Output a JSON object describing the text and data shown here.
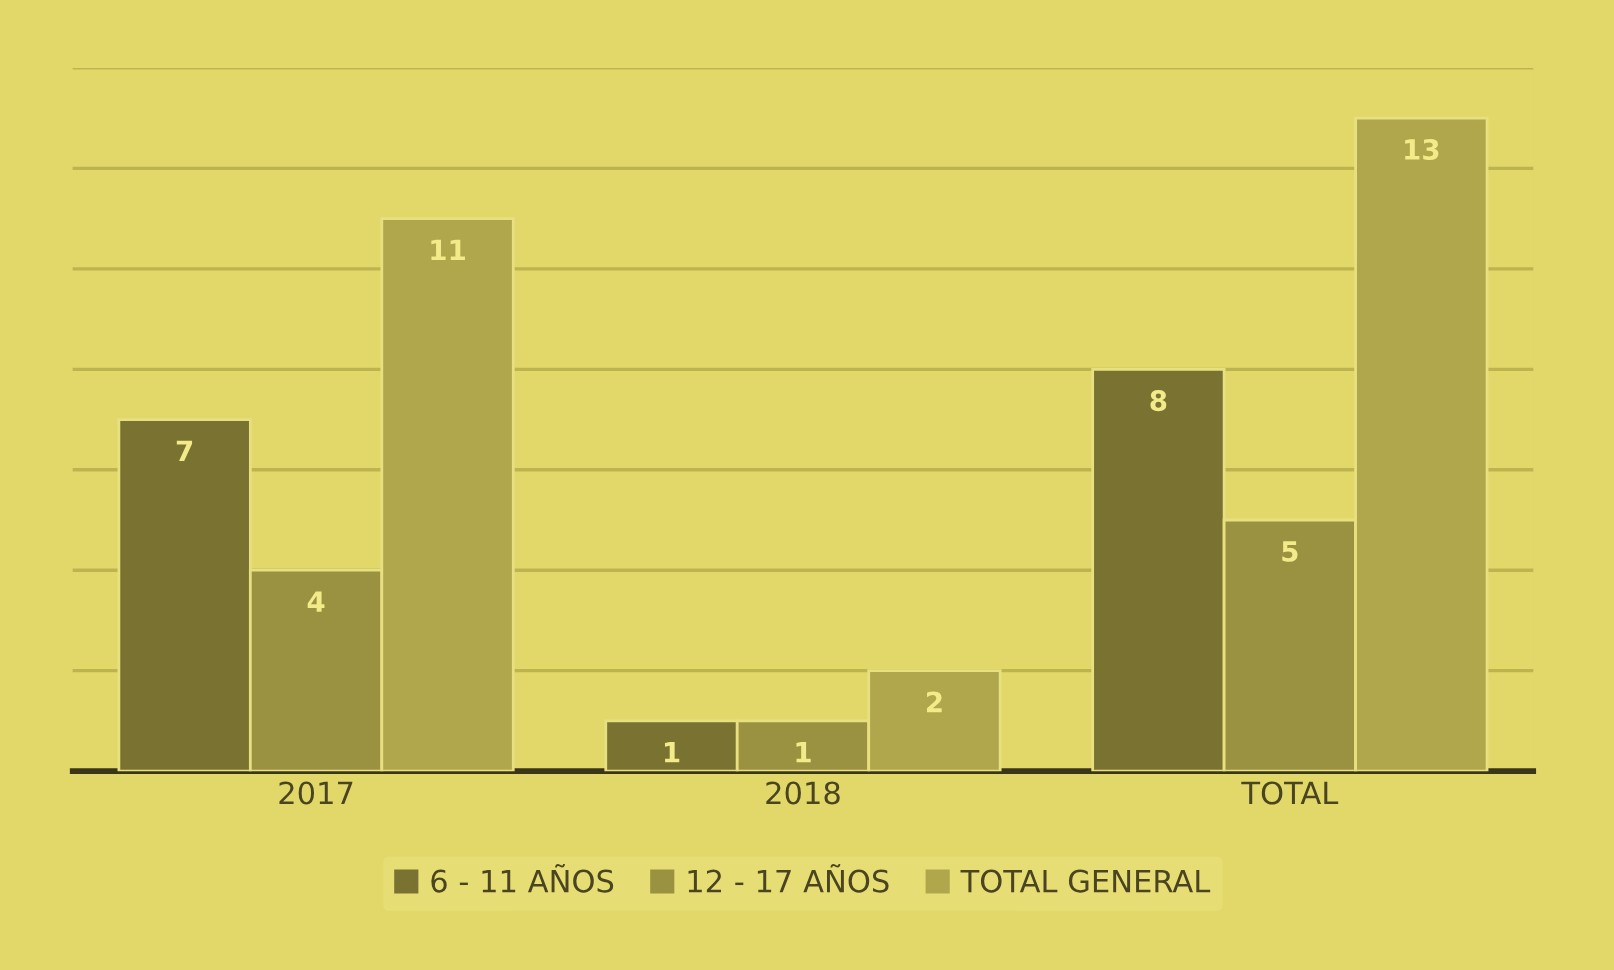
{
  "chart_data": {
    "type": "bar",
    "categories": [
      "2017",
      "2018",
      "TOTAL"
    ],
    "series": [
      {
        "name": "6 - 11 AÑOS",
        "color": "#7a7231",
        "values": [
          7,
          1,
          8
        ]
      },
      {
        "name": "12 - 17 AÑOS",
        "color": "#9a9240",
        "values": [
          4,
          1,
          5
        ]
      },
      {
        "name": "TOTAL GENERAL",
        "color": "#b0a74c",
        "values": [
          11,
          2,
          13
        ]
      }
    ],
    "ylim": [
      0,
      14
    ],
    "yticks": [
      {
        "value": 0,
        "label": null
      },
      {
        "value": 2,
        "label": null
      },
      {
        "value": 4,
        "label": null
      },
      {
        "value": 6,
        "label": null
      },
      {
        "value": 8,
        "label": null
      },
      {
        "value": 10,
        "label": null
      },
      {
        "value": 12,
        "label": null
      },
      {
        "value": 14,
        "label": null
      }
    ],
    "tick_labels": "x",
    "grid": "y",
    "legend": "bottom",
    "data_labels": true
  }
}
